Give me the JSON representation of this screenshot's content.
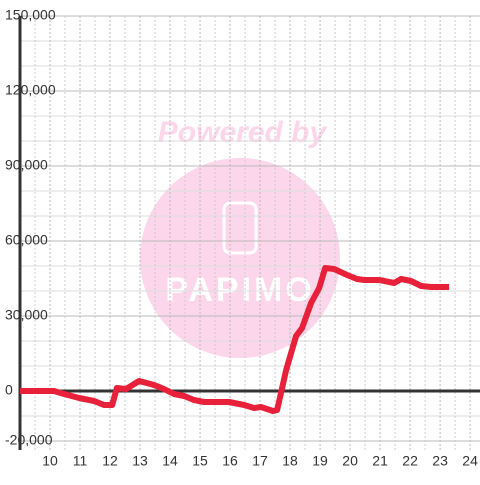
{
  "chart_data": {
    "type": "line",
    "watermark": {
      "line1": "Powered by",
      "line2": "PAPIMO"
    },
    "series": [
      {
        "name": null,
        "color": "#e8203a",
        "x": [
          9,
          10.13,
          10.47,
          10.97,
          11.47,
          11.8,
          12.07,
          12.23,
          12.53,
          12.97,
          13.47,
          13.8,
          14.13,
          14.47,
          14.8,
          15.13,
          15.97,
          16.47,
          16.8,
          17.03,
          17.43,
          17.57,
          17.87,
          18.2,
          18.4,
          18.7,
          18.97,
          19.17,
          19.47,
          19.9,
          20.23,
          20.47,
          20.97,
          21.47,
          21.7,
          22.03,
          22.37,
          22.7,
          23.3
        ],
        "values": [
          0,
          0,
          -1200,
          -2800,
          -4000,
          -5600,
          -5600,
          1200,
          800,
          4000,
          2400,
          800,
          -1200,
          -2000,
          -3600,
          -4400,
          -4400,
          -5600,
          -6800,
          -6400,
          -8000,
          -7600,
          8400,
          22000,
          25200,
          35200,
          41200,
          49200,
          48800,
          46400,
          44800,
          44400,
          44400,
          43200,
          44800,
          44000,
          42000,
          41600,
          41600
        ]
      }
    ],
    "xlim": [
      9,
      24.33
    ],
    "xticks": [
      10,
      11,
      12,
      13,
      14,
      15,
      16,
      17,
      18,
      19,
      20,
      21,
      22,
      23,
      24
    ],
    "ylim": [
      -23600,
      150000
    ],
    "yticks": [
      {
        "value": -20000,
        "label": "-20,000"
      },
      0,
      {
        "value": 30000,
        "label": "30,000"
      },
      {
        "value": 60000,
        "label": "60,000"
      },
      {
        "value": 90000,
        "label": "90,000"
      },
      {
        "value": 120000,
        "label": "120,000"
      },
      {
        "value": 150000,
        "label": "150,000"
      }
    ],
    "grid": true
  }
}
